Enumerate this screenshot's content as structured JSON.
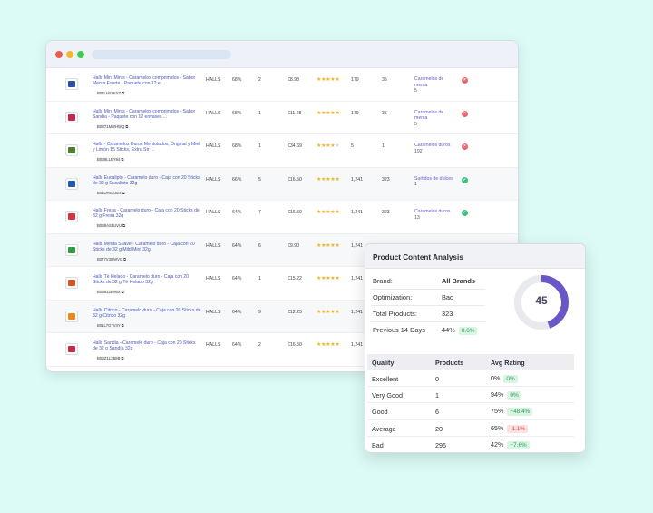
{
  "browser": {
    "dots": [
      "close",
      "minimize",
      "maximize"
    ]
  },
  "colors": {
    "accent": "#6a56c6",
    "star": "#f1b319",
    "success": "#3bbf7a",
    "error": "#e5646d",
    "background": "#dcfbf6"
  },
  "products": [
    {
      "name": "Halls Mini Mints - Caramelos comprimidos - Sabor Menta Fuerte - Paquete con 12 e ...",
      "asin": "B07LHY9KYZ ⧉",
      "brand": "HALLS",
      "pct": "68%",
      "n": "2",
      "price": "€8.93",
      "rating": 4.5,
      "reviews": "179",
      "count": "35",
      "category": "Caramelos de menta",
      "cat_count": "5",
      "status": "bad",
      "color": "#2c4fa8"
    },
    {
      "name": "Halls Mini Mints - Caramelos comprimidos - Sabor Sandia - Paquete con 12 envases ...",
      "asin": "B0B71MWHWQ ⧉",
      "brand": "HALLS",
      "pct": "68%",
      "n": "1",
      "price": "€11.28",
      "rating": 4.5,
      "reviews": "179",
      "count": "35",
      "category": "Caramelos de menta",
      "cat_count": "5",
      "status": "bad",
      "color": "#c9284a"
    },
    {
      "name": "Halls - Caramelos Duros Mentolados, Original y Miel y Limón 15 Sticks, Extra Str ...",
      "asin": "B0B9LLRY94 ⧉",
      "brand": "HALLS",
      "pct": "68%",
      "n": "1",
      "price": "€34.69",
      "rating": 4,
      "reviews": "5",
      "count": "1",
      "category": "Caramelos duros",
      "cat_count": "192",
      "status": "bad",
      "color": "#4e7f2e"
    },
    {
      "name": "Halls Eucalipto - Caramelo duro - Caja con 20 Sticks de 32 g Eucalipto 32g",
      "asin": "B01DH5O3E4 ⧉",
      "brand": "HALLS",
      "pct": "66%",
      "n": "5",
      "price": "€16.50",
      "rating": 5,
      "reviews": "1,241",
      "count": "323",
      "category": "Surtidos de dulces",
      "cat_count": "1",
      "status": "good",
      "color": "#1f5ab8"
    },
    {
      "name": "Halls Fresa - Caramelo duro - Caja con 20 Sticks de 32 g Fresa 32g",
      "asin": "B0B9AS3UVU ⧉",
      "brand": "HALLS",
      "pct": "64%",
      "n": "7",
      "price": "€16.50",
      "rating": 5,
      "reviews": "1,241",
      "count": "323",
      "category": "Caramelos duros",
      "cat_count": "13",
      "status": "good",
      "color": "#d8323a"
    },
    {
      "name": "Halls Menta Suave - Caramelo duro - Caja con 20 Sticks de 32 g Mild Mint 32g",
      "asin": "B077V3QWVC ⧉",
      "brand": "HALLS",
      "pct": "64%",
      "n": "6",
      "price": "€9.90",
      "rating": 5,
      "reviews": "1,241",
      "count": "",
      "category": "",
      "cat_count": "",
      "status": "",
      "color": "#2f9b42"
    },
    {
      "name": "Halls Té Helado - Caramelo duro - Caja con 20 Sticks de 32 g Té Helado 32g",
      "asin": "B0B9J2BH6X ⧉",
      "brand": "HALLS",
      "pct": "64%",
      "n": "1",
      "price": "€15.22",
      "rating": 5,
      "reviews": "1,241",
      "count": "",
      "category": "",
      "cat_count": "",
      "status": "",
      "color": "#d4561e"
    },
    {
      "name": "Halls Cítrico - Caramelo duro - Caja con 20 Sticks de 32 g Cítrico 32g",
      "asin": "B01L7G7V4Y ⧉",
      "brand": "HALLS",
      "pct": "64%",
      "n": "9",
      "price": "€12.25",
      "rating": 5,
      "reviews": "1,241",
      "count": "",
      "category": "",
      "cat_count": "",
      "status": "",
      "color": "#ee8a1c"
    },
    {
      "name": "Halls Sandia - Caramelo duro - Caja con 20 Sticks de 32 g Sandía 32g",
      "asin": "B0BZ1L2B8B ⧉",
      "brand": "HALLS",
      "pct": "64%",
      "n": "2",
      "price": "€16.50",
      "rating": 5,
      "reviews": "1,241",
      "count": "",
      "category": "",
      "cat_count": "",
      "status": "",
      "color": "#c82a44"
    }
  ],
  "analysis": {
    "title": "Product Content Analysis",
    "brand_label": "Brand:",
    "brand_value": "All Brands",
    "optimization_label": "Optimization:",
    "optimization_value": "Bad",
    "total_label": "Total Products:",
    "total_value": "323",
    "prev_label": "Previous 14 Days",
    "prev_value": "44%",
    "prev_delta": "0.6%",
    "score": "45",
    "score_fraction": 0.45,
    "table_headers": [
      "Quality",
      "Products",
      "Avg Rating"
    ],
    "rows": [
      {
        "quality": "Excellent",
        "products": "0",
        "rating": "0%",
        "delta": "0%",
        "trend": "up"
      },
      {
        "quality": "Very Good",
        "products": "1",
        "rating": "94%",
        "delta": "0%",
        "trend": "up"
      },
      {
        "quality": "Good",
        "products": "6",
        "rating": "75%",
        "delta": "+48.4%",
        "trend": "up"
      },
      {
        "quality": "Average",
        "products": "20",
        "rating": "65%",
        "delta": "-1.1%",
        "trend": "down"
      },
      {
        "quality": "Bad",
        "products": "296",
        "rating": "42%",
        "delta": "+7.6%",
        "trend": "up"
      }
    ]
  }
}
